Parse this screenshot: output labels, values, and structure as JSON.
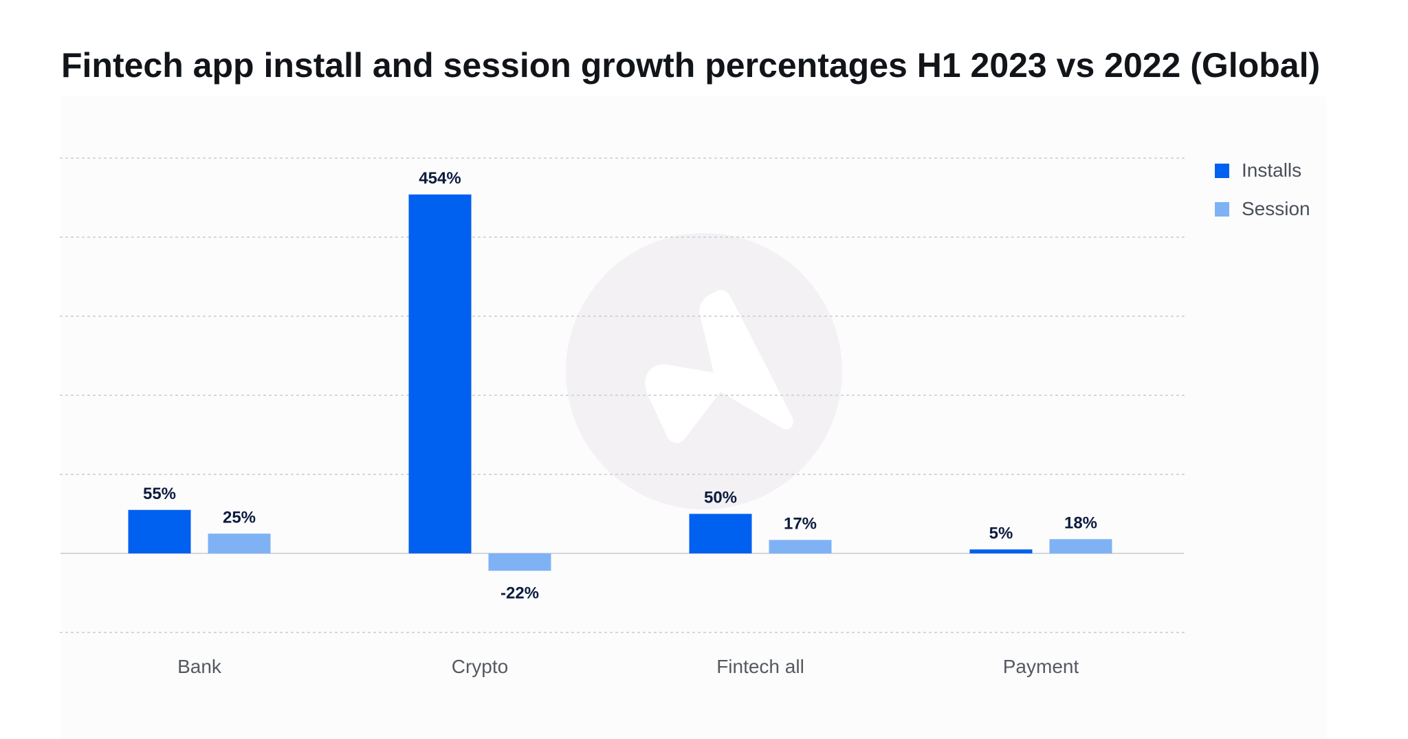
{
  "title": "Fintech app install and session growth percentages H1 2023 vs 2022 (Global)",
  "colors": {
    "installs": "#0060f0",
    "session": "#7fb2f5",
    "data_label": "#0d1b3e",
    "tick_label": "#55595f",
    "grid": "#cfd3d8",
    "zero_line": "#d4d6d9"
  },
  "legend": [
    {
      "name": "Installs",
      "color": "#0060f0"
    },
    {
      "name": "Session",
      "color": "#7fb2f5"
    }
  ],
  "watermark": {
    "icon": "adjust-logo-icon"
  },
  "chart_data": {
    "type": "bar",
    "title": "Fintech app install and session growth percentages H1 2023 vs 2022 (Global)",
    "xlabel": "",
    "ylabel": "",
    "categories": [
      "Bank",
      "Crypto",
      "Fintech all",
      "Payment"
    ],
    "series": [
      {
        "name": "Installs",
        "values": [
          55,
          454,
          50,
          5
        ],
        "labels": [
          "55%",
          "454%",
          "50%",
          "5%"
        ]
      },
      {
        "name": "Session",
        "values": [
          25,
          -22,
          17,
          18
        ],
        "labels": [
          "25%",
          "-22%",
          "17%",
          "18%"
        ]
      }
    ],
    "ylim": [
      -100,
      500
    ],
    "grid": true,
    "legend_position": "top-right"
  }
}
